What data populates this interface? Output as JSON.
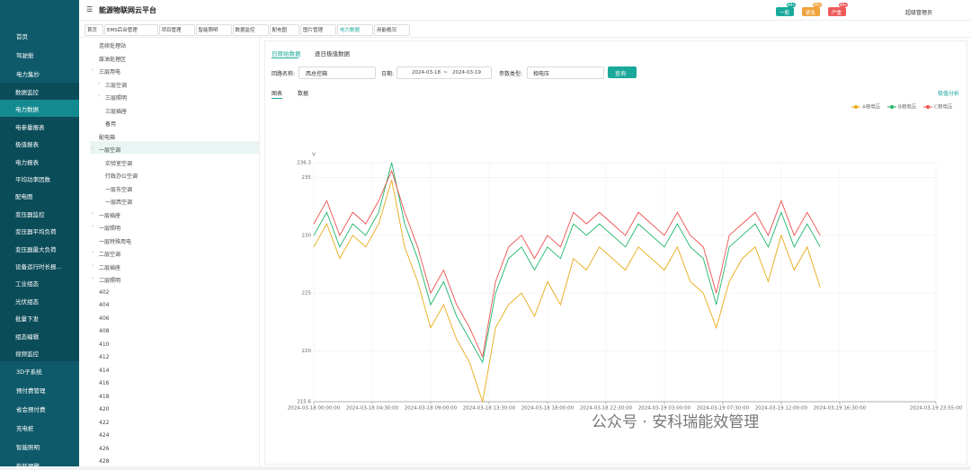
{
  "header": {
    "title": "能源物联网云平台",
    "alarms": [
      {
        "label": "一般",
        "count": "99+"
      },
      {
        "label": "紧急",
        "count": "99+"
      },
      {
        "label": "严重",
        "count": "99+"
      }
    ],
    "user": "超级管理员"
  },
  "nav_tabs": [
    "首页",
    "EMS后台管理",
    "项目管理",
    "智能照明",
    "数据监控",
    "配电图",
    "图片管理",
    "电力数据",
    "用能概况"
  ],
  "sidebar": {
    "top": [
      "首页",
      "驾驶舱",
      "电力集抄"
    ],
    "sub": [
      "数据监控",
      "电力数据",
      "电参量报表",
      "极值报表",
      "电力报表",
      "平均功率因数",
      "配电图",
      "变压器监控",
      "变压器平均负荷",
      "变压器最大负荷",
      "设备运行时长报...",
      "工业组态",
      "光伏组态",
      "批量下发",
      "组态编辑",
      "视频监控"
    ],
    "bottom": [
      "3D子系统",
      "预付费管理",
      "省会预付费",
      "充电桩",
      "智能照明",
      "能耗预警"
    ]
  },
  "tree": [
    "连续处理站",
    "废油处理区",
    "三层用电",
    "三层空调",
    "三层照明",
    "三层插座",
    "备用",
    "配电箱",
    "一层空调",
    "实验室空调",
    "行政办公空调",
    "一层东空调",
    "一层西空调",
    "一层插座",
    "一层照明",
    "一层特殊用电",
    "二层空调",
    "二层插座",
    "二层照明",
    "402",
    "404",
    "406",
    "408",
    "410",
    "412",
    "414",
    "416",
    "418",
    "420",
    "422",
    "424",
    "426",
    "428"
  ],
  "filters": {
    "tabs": [
      "日原始数据",
      "逐日极值数据"
    ],
    "circuit_label": "回路名称:",
    "circuit": "西总控箱",
    "date_label": "日期:",
    "date_start": "2024-03-18",
    "date_sep": "~",
    "date_end": "2024-03-19",
    "param_label": "参数类型:",
    "param": "相电压",
    "button": "查询",
    "view_tabs": [
      "图表",
      "数据"
    ],
    "analysis": "极值分析"
  },
  "watermark": "公众号 · 安科瑞能效管理",
  "chart_data": {
    "type": "line",
    "y_label": "V",
    "x": [
      "2024-03-18 00:00:00",
      "2024-03-18 01:00:00",
      "2024-03-18 02:00:00",
      "2024-03-18 03:00:00",
      "2024-03-18 04:00:00",
      "2024-03-18 05:00:00",
      "2024-03-18 06:00:00",
      "2024-03-18 07:00:00",
      "2024-03-18 08:00:00",
      "2024-03-18 09:00:00",
      "2024-03-18 10:00:00",
      "2024-03-18 11:00:00",
      "2024-03-18 12:00:00",
      "2024-03-18 13:00:00",
      "2024-03-18 14:00:00",
      "2024-03-18 15:00:00",
      "2024-03-18 16:00:00",
      "2024-03-18 17:00:00",
      "2024-03-18 18:00:00",
      "2024-03-18 19:00:00",
      "2024-03-18 20:00:00",
      "2024-03-18 21:00:00",
      "2024-03-18 22:00:00",
      "2024-03-18 23:00:00",
      "2024-03-19 00:00:00",
      "2024-03-19 01:00:00",
      "2024-03-19 02:00:00",
      "2024-03-19 03:00:00",
      "2024-03-19 04:00:00",
      "2024-03-19 05:00:00",
      "2024-03-19 06:00:00",
      "2024-03-19 07:00:00",
      "2024-03-19 08:00:00",
      "2024-03-19 09:00:00",
      "2024-03-19 10:00:00",
      "2024-03-19 11:00:00",
      "2024-03-19 12:00:00",
      "2024-03-19 13:00:00",
      "2024-03-19 14:00:00",
      "2024-03-19 15:00:00"
    ],
    "xlim": [
      "2024-03-18 00:00:00",
      "2024-03-19 23:55:00"
    ],
    "xticks": [
      "2024-03-18 00:00:00",
      "2024-03-18 04:30:00",
      "2024-03-18 09:00:00",
      "2024-03-18 13:30:00",
      "2024-03-18 18:00:00",
      "2024-03-18 22:30:00",
      "2024-03-19 03:00:00",
      "2024-03-19 07:30:00",
      "2024-03-19 12:00:00",
      "2024-03-19 16:30:00",
      "2024-03-19 23:55:00"
    ],
    "ylim": [
      215.6,
      236.3
    ],
    "yticks": [
      215.6,
      220,
      225,
      230,
      235,
      236.3
    ],
    "grid": true,
    "legend": "top-right",
    "series": [
      {
        "name": "A相电压",
        "color": "#e8aa14",
        "values": [
          229,
          231,
          228,
          230,
          229,
          231,
          234.8,
          229,
          226,
          222,
          224,
          221,
          219,
          215.6,
          222,
          224,
          225,
          223,
          226,
          224,
          228,
          227,
          229,
          228,
          227,
          229,
          228,
          227,
          229,
          226,
          225,
          222,
          226,
          228,
          229,
          226,
          230,
          227,
          229,
          225.5
        ]
      },
      {
        "name": "B相电压",
        "color": "#1db56a",
        "values": [
          230,
          232,
          229,
          231,
          230,
          232,
          236.3,
          231,
          228,
          224,
          226,
          223,
          221,
          219,
          225,
          228,
          229,
          227,
          229,
          228,
          231,
          230,
          231,
          230,
          229,
          231,
          230,
          229,
          231,
          229,
          228,
          224,
          229,
          230,
          231,
          229,
          232,
          229,
          231,
          229
        ]
      },
      {
        "name": "C相电压",
        "color": "#ee5050",
        "values": [
          231,
          233,
          230,
          232,
          231,
          233,
          235.6,
          232,
          229,
          225,
          227,
          224,
          222,
          219.5,
          226,
          229,
          230,
          228,
          230,
          229,
          232,
          231,
          232,
          231,
          230,
          232,
          231,
          230,
          232,
          230,
          229,
          225,
          230,
          231,
          232,
          230,
          233,
          230,
          232,
          230
        ]
      }
    ]
  }
}
